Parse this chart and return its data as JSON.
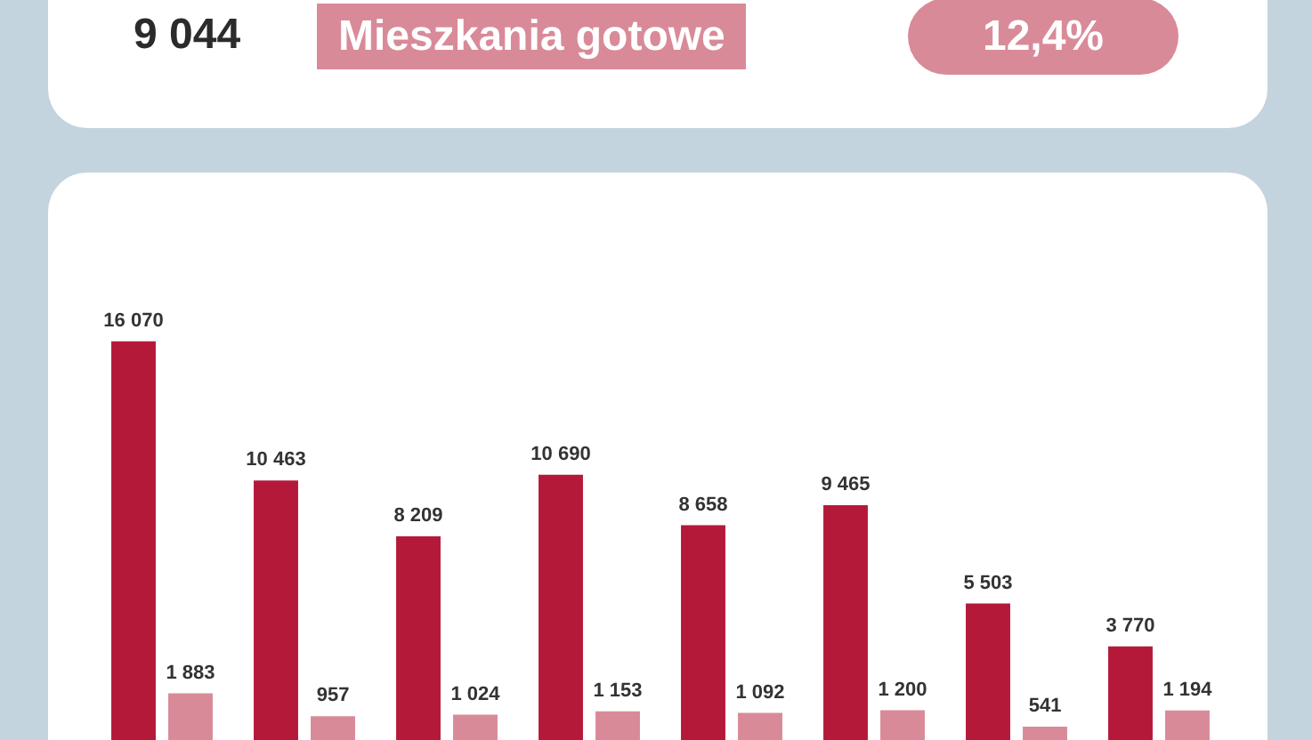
{
  "chart_data": [
    {
      "type": "other",
      "title": "Mieszkania gotowe",
      "annotations": [
        "9 044",
        "12,4%"
      ]
    },
    {
      "type": "bar",
      "categories": [
        null,
        null,
        null,
        null,
        null,
        null,
        null,
        null
      ],
      "series": [
        {
          "color": "#b5193a",
          "values": [
            16070,
            10463,
            8209,
            10690,
            8658,
            9465,
            5503,
            3770
          ],
          "value_labels": [
            "16 070",
            "10 463",
            "8 209",
            "10 690",
            "8 658",
            "9 465",
            "5 503",
            "3 770"
          ]
        },
        {
          "color": "#d98a98",
          "values": [
            1883,
            957,
            1024,
            1153,
            1092,
            1200,
            541,
            1194
          ],
          "value_labels": [
            "1 883",
            "957",
            "1 024",
            "1 153",
            "1 092",
            "1 200",
            "541",
            "1 194"
          ]
        }
      ]
    }
  ]
}
